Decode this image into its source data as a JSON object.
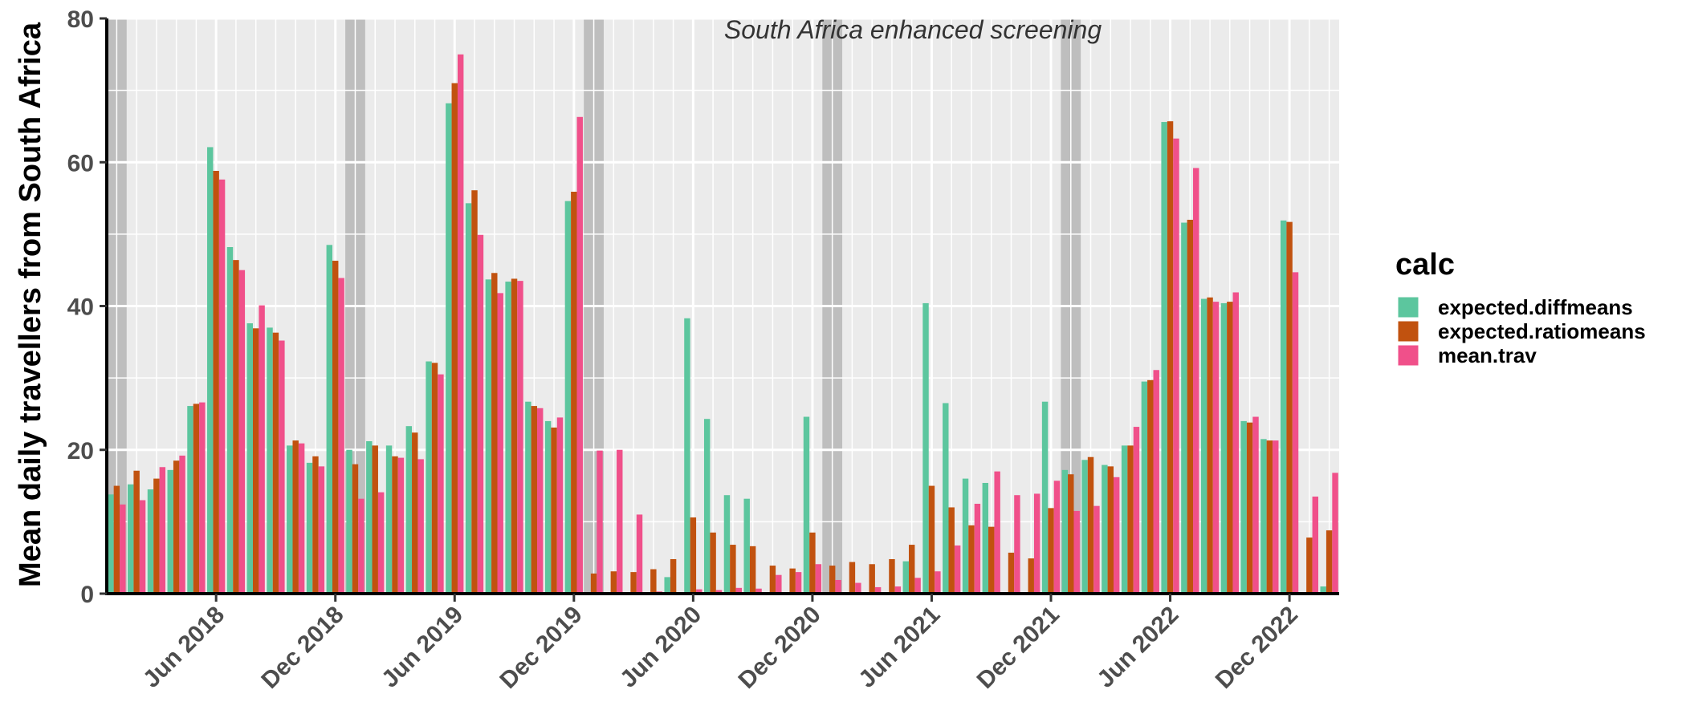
{
  "chart_data": {
    "type": "bar",
    "ylabel": "Mean daily travellers from South Africa",
    "xlabel": "",
    "ylim": [
      0,
      80
    ],
    "y_ticks": [
      0,
      20,
      40,
      60,
      80
    ],
    "x_tick_labels": [
      "Jun 2018",
      "Dec 2018",
      "Jun 2019",
      "Dec 2019",
      "Jun 2020",
      "Dec 2020",
      "Jun 2021",
      "Dec 2021",
      "Jun 2022",
      "Dec 2022"
    ],
    "annotation": "South Africa enhanced screening",
    "legend_title": "calc",
    "legend_position": "right",
    "grid": true,
    "categories": [
      "Jan 2018",
      "Feb 2018",
      "Mar 2018",
      "Apr 2018",
      "May 2018",
      "Jun 2018",
      "Jul 2018",
      "Aug 2018",
      "Sep 2018",
      "Oct 2018",
      "Nov 2018",
      "Dec 2018",
      "Jan 2019",
      "Feb 2019",
      "Mar 2019",
      "Apr 2019",
      "May 2019",
      "Jun 2019",
      "Jul 2019",
      "Aug 2019",
      "Sep 2019",
      "Oct 2019",
      "Nov 2019",
      "Dec 2019",
      "Jan 2020",
      "Feb 2020",
      "Mar 2020",
      "Apr 2020",
      "May 2020",
      "Jun 2020",
      "Jul 2020",
      "Aug 2020",
      "Sep 2020",
      "Oct 2020",
      "Nov 2020",
      "Dec 2020",
      "Jan 2021",
      "Feb 2021",
      "Mar 2021",
      "Apr 2021",
      "May 2021",
      "Jun 2021",
      "Jul 2021",
      "Aug 2021",
      "Sep 2021",
      "Oct 2021",
      "Nov 2021",
      "Dec 2021",
      "Jan 2022",
      "Feb 2022",
      "Mar 2022",
      "Apr 2022",
      "May 2022",
      "Jun 2022",
      "Jul 2022",
      "Aug 2022",
      "Sep 2022",
      "Oct 2022",
      "Nov 2022",
      "Dec 2022",
      "Jan 2023",
      "Feb 2023"
    ],
    "shaded_months": [
      "Jan 2018",
      "Jan 2019",
      "Jan 2020",
      "Jan 2021",
      "Jan 2022"
    ],
    "series": [
      {
        "name": "expected.diffmeans",
        "color": "#5CC69E",
        "values": [
          13.8,
          15.2,
          14.5,
          17.2,
          26.1,
          62.1,
          48.2,
          37.6,
          37.0,
          20.6,
          18.2,
          48.5,
          20.0,
          21.2,
          20.6,
          23.3,
          32.3,
          68.2,
          54.3,
          43.7,
          43.4,
          26.7,
          24.0,
          54.6,
          0.0,
          0.0,
          0.0,
          0.0,
          2.3,
          38.3,
          24.3,
          13.7,
          13.2,
          0.0,
          0.0,
          24.6,
          0.0,
          0.0,
          0.0,
          0.0,
          4.5,
          40.4,
          26.5,
          16.0,
          15.4,
          0.0,
          0.0,
          26.7,
          17.2,
          18.6,
          17.9,
          20.6,
          29.5,
          65.6,
          51.6,
          41.0,
          40.4,
          24.0,
          21.5,
          51.9,
          0.0,
          1.0
        ]
      },
      {
        "name": "expected.ratiomeans",
        "color": "#C1520F",
        "values": [
          15.0,
          17.1,
          16.0,
          18.5,
          26.4,
          58.8,
          46.4,
          36.9,
          36.3,
          21.3,
          19.1,
          46.3,
          18.0,
          20.6,
          19.1,
          22.4,
          32.1,
          71.0,
          56.1,
          44.6,
          43.8,
          26.1,
          23.1,
          55.9,
          2.8,
          3.1,
          3.0,
          3.4,
          4.8,
          10.6,
          8.5,
          6.8,
          6.6,
          3.9,
          3.5,
          8.5,
          3.9,
          4.4,
          4.1,
          4.8,
          6.8,
          15.0,
          12.0,
          9.5,
          9.3,
          5.7,
          4.9,
          11.9,
          16.6,
          19.0,
          17.7,
          20.6,
          29.7,
          65.7,
          52.0,
          41.2,
          40.6,
          23.8,
          21.3,
          51.7,
          7.8,
          8.8
        ]
      },
      {
        "name": "mean.trav",
        "color": "#F0508A",
        "values": [
          12.4,
          13.0,
          17.6,
          19.2,
          26.6,
          57.6,
          45.0,
          40.1,
          35.2,
          20.9,
          17.7,
          43.9,
          13.2,
          14.1,
          18.9,
          18.7,
          30.5,
          75.0,
          49.9,
          41.8,
          43.5,
          25.8,
          24.5,
          66.3,
          19.9,
          20.0,
          11.0,
          0.3,
          0.2,
          0.6,
          0.5,
          0.8,
          0.7,
          2.6,
          3.0,
          4.1,
          1.9,
          1.5,
          0.9,
          1.0,
          2.2,
          3.1,
          6.7,
          12.5,
          17.0,
          13.7,
          13.9,
          15.7,
          11.5,
          12.2,
          16.2,
          23.2,
          31.1,
          63.3,
          59.2,
          40.6,
          41.9,
          24.6,
          21.3,
          44.7,
          13.5,
          16.8
        ]
      }
    ]
  }
}
